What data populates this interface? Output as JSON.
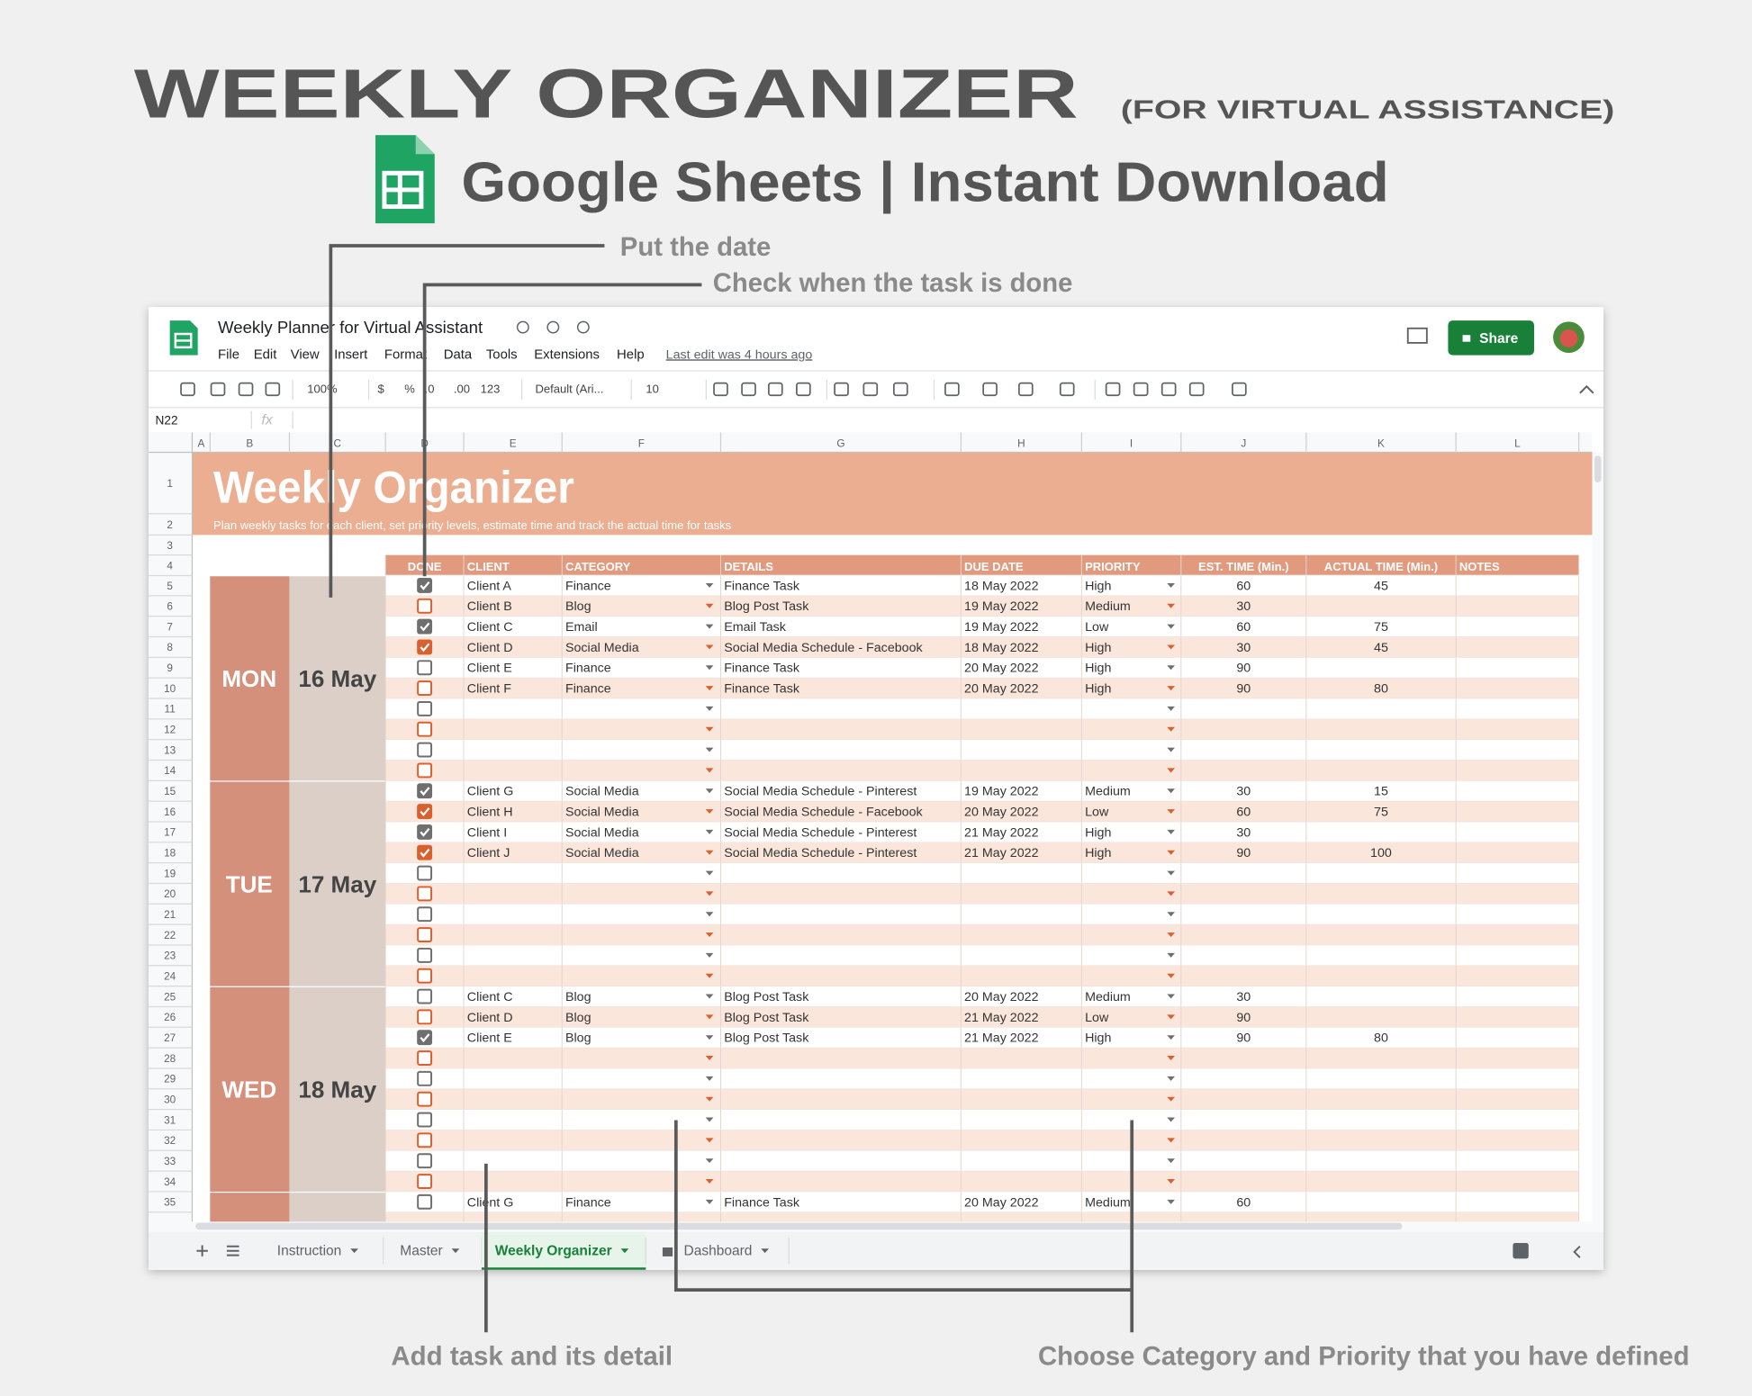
{
  "header": {
    "title": "WEEKLY ORGANIZER",
    "subtitle": "(FOR VIRTUAL ASSISTANCE)",
    "tagline": "Google Sheets | Instant Download"
  },
  "annotations": [
    "Put the date",
    "Check when the task is done",
    "Add task and its detail",
    "Choose Category and Priority that you have defined"
  ],
  "app": {
    "doc_title": "Weekly Planner for Virtual Assistant",
    "menu": [
      "File",
      "Edit",
      "View",
      "Insert",
      "Format",
      "Data",
      "Tools",
      "Extensions",
      "Help"
    ],
    "last_edit": "Last edit was 4 hours ago",
    "share": "Share",
    "toolbar": [
      "100%",
      "$",
      "%",
      ".0",
      ".00",
      "123",
      "Default (Ari...",
      "10"
    ],
    "cell_ref": "N22",
    "fx": "fx",
    "columns": [
      "A",
      "B",
      "C",
      "D",
      "E",
      "F",
      "G",
      "H",
      "I",
      "J",
      "K",
      "L"
    ],
    "row_numbers": [
      1,
      2,
      3,
      4,
      5,
      6,
      7,
      8,
      9,
      10,
      11,
      12,
      13,
      14,
      15,
      16,
      17,
      18,
      19,
      20,
      21,
      22,
      23,
      24,
      25,
      26,
      27,
      28,
      29,
      30,
      31,
      32,
      33,
      34,
      35
    ],
    "tabs": [
      "Instruction",
      "Master",
      "Weekly Organizer",
      "Dashboard"
    ],
    "active_tab": 2
  },
  "sheet": {
    "title": "Weekly Organizer",
    "subtitle": "Plan weekly tasks for each client, set priority levels, estimate time and track the actual time for tasks",
    "headers": [
      "DONE",
      "CLIENT",
      "CATEGORY",
      "DETAILS",
      "DUE DATE",
      "PRIORITY",
      "EST. TIME (Min.)",
      "ACTUAL TIME (Min.)",
      "NOTES"
    ],
    "days": [
      {
        "day": "MON",
        "date": "16 May",
        "tasks": [
          [
            true,
            "Client A",
            "Finance",
            "Finance Task",
            "18 May 2022",
            "High",
            60,
            45
          ],
          [
            false,
            "Client B",
            "Blog",
            "Blog Post Task",
            "19 May 2022",
            "Medium",
            30,
            null
          ],
          [
            true,
            "Client C",
            "Email",
            "Email Task",
            "19 May 2022",
            "Low",
            60,
            75
          ],
          [
            true,
            "Client D",
            "Social Media",
            "Social Media Schedule - Facebook",
            "18 May 2022",
            "High",
            30,
            45
          ],
          [
            false,
            "Client E",
            "Finance",
            "Finance Task",
            "20 May 2022",
            "High",
            90,
            null
          ],
          [
            false,
            "Client F",
            "Finance",
            "Finance Task",
            "20 May 2022",
            "High",
            90,
            80
          ],
          [
            false,
            null,
            null,
            null,
            null,
            null,
            null,
            null
          ],
          [
            false,
            null,
            null,
            null,
            null,
            null,
            null,
            null
          ],
          [
            false,
            null,
            null,
            null,
            null,
            null,
            null,
            null
          ],
          [
            false,
            null,
            null,
            null,
            null,
            null,
            null,
            null
          ]
        ]
      },
      {
        "day": "TUE",
        "date": "17 May",
        "tasks": [
          [
            true,
            "Client G",
            "Social Media",
            "Social Media Schedule - Pinterest",
            "19 May 2022",
            "Medium",
            30,
            15
          ],
          [
            true,
            "Client H",
            "Social Media",
            "Social Media Schedule - Facebook",
            "20 May 2022",
            "Low",
            60,
            75
          ],
          [
            true,
            "Client I",
            "Social Media",
            "Social Media Schedule - Pinterest",
            "21 May 2022",
            "High",
            30,
            null
          ],
          [
            true,
            "Client J",
            "Social Media",
            "Social Media Schedule - Pinterest",
            "21 May 2022",
            "High",
            90,
            100
          ],
          [
            false,
            null,
            null,
            null,
            null,
            null,
            null,
            null
          ],
          [
            false,
            null,
            null,
            null,
            null,
            null,
            null,
            null
          ],
          [
            false,
            null,
            null,
            null,
            null,
            null,
            null,
            null
          ],
          [
            false,
            null,
            null,
            null,
            null,
            null,
            null,
            null
          ],
          [
            false,
            null,
            null,
            null,
            null,
            null,
            null,
            null
          ],
          [
            false,
            null,
            null,
            null,
            null,
            null,
            null,
            null
          ]
        ]
      },
      {
        "day": "WED",
        "date": "18 May",
        "tasks": [
          [
            false,
            "Client C",
            "Blog",
            "Blog Post Task",
            "20 May 2022",
            "Medium",
            30,
            null
          ],
          [
            false,
            "Client D",
            "Blog",
            "Blog Post Task",
            "21 May 2022",
            "Low",
            90,
            null
          ],
          [
            true,
            "Client E",
            "Blog",
            "Blog Post Task",
            "21 May 2022",
            "High",
            90,
            80
          ],
          [
            false,
            null,
            null,
            null,
            null,
            null,
            null,
            null
          ],
          [
            false,
            null,
            null,
            null,
            null,
            null,
            null,
            null
          ],
          [
            false,
            null,
            null,
            null,
            null,
            null,
            null,
            null
          ],
          [
            false,
            null,
            null,
            null,
            null,
            null,
            null,
            null
          ],
          [
            false,
            null,
            null,
            null,
            null,
            null,
            null,
            null
          ],
          [
            false,
            null,
            null,
            null,
            null,
            null,
            null,
            null
          ],
          [
            false,
            null,
            null,
            null,
            null,
            null,
            null,
            null
          ]
        ]
      }
    ],
    "next_day_tasks": [
      [
        false,
        "Client G",
        "Finance",
        "Finance Task",
        "20 May 2022",
        "Medium",
        60,
        null
      ]
    ]
  }
}
